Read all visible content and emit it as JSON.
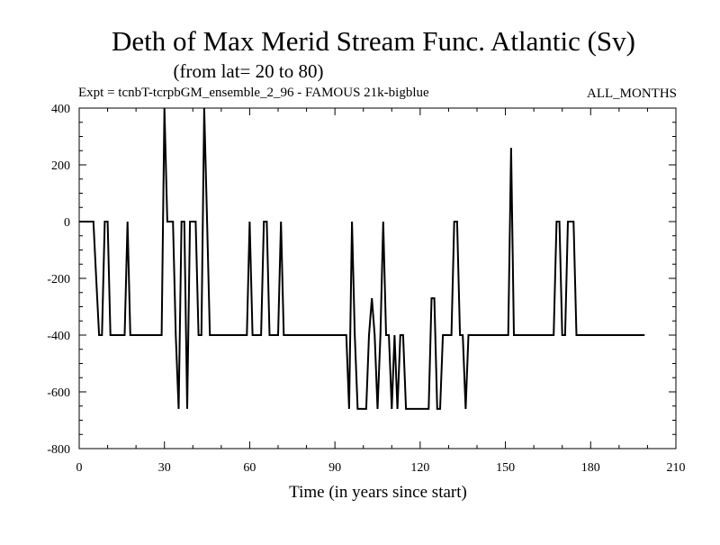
{
  "chart_data": {
    "type": "line",
    "title": "Deth of Max Merid Stream Func. Atlantic (Sv)",
    "subtitle": "(from lat= 20 to 80)",
    "experiment": "Expt = tcnbT-tcrpbGM_ensemble_2_96 - FAMOUS 21k-bigblue",
    "months": "ALL_MONTHS",
    "xlabel": "Time (in years since start)",
    "ylabel": "",
    "xlim": [
      0,
      210
    ],
    "ylim": [
      -800,
      400
    ],
    "xticks": [
      0,
      30,
      60,
      90,
      120,
      150,
      180,
      210
    ],
    "yticks": [
      400,
      200,
      0,
      -200,
      -400,
      -600,
      -800
    ],
    "grid": false,
    "series": [
      {
        "color": "#000000",
        "x": [
          0,
          5,
          6,
          7,
          8,
          9,
          10,
          11,
          12,
          16,
          17,
          18,
          19,
          28,
          29,
          30,
          31,
          32,
          33,
          34,
          35,
          36,
          37,
          38,
          39,
          40,
          41,
          42,
          43,
          44,
          45,
          46,
          47,
          59,
          60,
          61,
          62,
          63,
          64,
          65,
          66,
          67,
          68,
          70,
          71,
          72,
          73,
          93,
          94,
          95,
          96,
          97,
          98,
          99,
          100,
          101,
          102,
          103,
          104,
          105,
          106,
          107,
          108,
          109,
          110,
          111,
          112,
          113,
          114,
          115,
          116,
          117,
          118,
          119,
          120,
          121,
          122,
          123,
          124,
          125,
          126,
          127,
          128,
          129,
          130,
          131,
          132,
          133,
          134,
          135,
          136,
          137,
          138,
          140,
          150,
          151,
          152,
          153,
          166,
          167,
          168,
          169,
          170,
          171,
          172,
          173,
          174,
          175,
          176,
          199
        ],
        "y": [
          0,
          0,
          -200,
          -400,
          -400,
          0,
          0,
          -400,
          -400,
          -400,
          0,
          -400,
          -400,
          -400,
          -400,
          400,
          0,
          0,
          0,
          -400,
          -660,
          0,
          0,
          -660,
          0,
          0,
          0,
          -400,
          -400,
          400,
          0,
          -400,
          -400,
          -400,
          0,
          -400,
          -400,
          -400,
          -400,
          0,
          0,
          -400,
          -400,
          -400,
          0,
          -400,
          -400,
          -400,
          -400,
          -660,
          0,
          -400,
          -660,
          -660,
          -660,
          -660,
          -400,
          -270,
          -400,
          -660,
          -400,
          0,
          -400,
          -400,
          -660,
          -400,
          -660,
          -400,
          -400,
          -660,
          -660,
          -660,
          -660,
          -660,
          -660,
          -660,
          -660,
          -660,
          -270,
          -270,
          -660,
          -660,
          -400,
          -400,
          -400,
          -400,
          0,
          0,
          -400,
          -400,
          -660,
          -400,
          -400,
          -400,
          -400,
          -400,
          260,
          -400,
          -400,
          -400,
          0,
          0,
          -400,
          -400,
          0,
          0,
          0,
          -400,
          -400,
          -400
        ]
      }
    ]
  }
}
